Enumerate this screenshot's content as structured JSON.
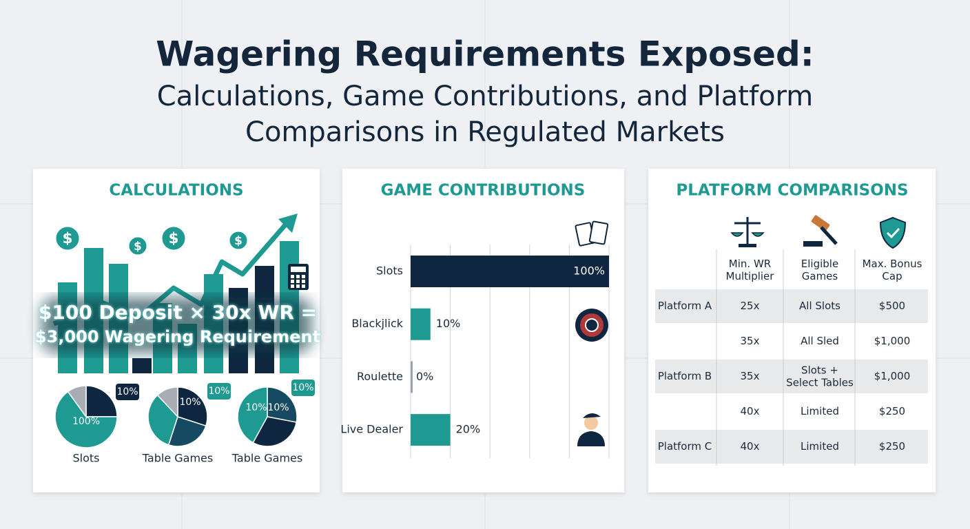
{
  "title": "Wagering Requirements Exposed:",
  "subtitle": [
    "Calculations, Game Contributions, and Platform",
    "Comparisons in Regulated Markets"
  ],
  "calculations": {
    "heading": "CALCULATIONS",
    "coin_symbol": "$",
    "formula": [
      "$100 Deposit × 30x WR =",
      "$3,000 Wagering Requirement"
    ],
    "pies": [
      {
        "label": "Slots",
        "slice_labels": [
          "100%",
          "10%"
        ]
      },
      {
        "label": "Table Games",
        "slice_labels": [
          "10%",
          "10%"
        ]
      },
      {
        "label": "Table Games",
        "slice_labels": [
          "10%",
          "10%",
          "10%"
        ]
      }
    ]
  },
  "chart_data": {
    "type": "bar",
    "orientation": "horizontal",
    "title": "GAME CONTRIBUTIONS",
    "categories": [
      "Slots",
      "Blackjlick",
      "Roulette",
      "Live Dealer"
    ],
    "values": [
      100,
      10,
      0,
      20
    ],
    "value_labels": [
      "100%",
      "10%",
      "0%",
      "20%"
    ],
    "colors": [
      "#0f2640",
      "#1f9a93",
      "#9aa3ab",
      "#1f9a93"
    ],
    "xlim": [
      0,
      100
    ],
    "grid": true
  },
  "platforms": {
    "heading": "PLATFORM COMPARISONS",
    "columns": [
      "Min. WR Multiplier",
      "Eligible Games",
      "Max. Bonus Cap"
    ],
    "rows": [
      [
        "Platform A",
        "25x",
        "All Slots",
        "$500"
      ],
      [
        null,
        "35x",
        "All Sled",
        "$1,000"
      ],
      [
        "Platform B",
        "35x",
        "Slots + Select Tables",
        "$1,000"
      ],
      [
        null,
        "40x",
        "Limited",
        "$250"
      ],
      [
        "Platform C",
        "40x",
        "Limited",
        "$250"
      ]
    ]
  }
}
